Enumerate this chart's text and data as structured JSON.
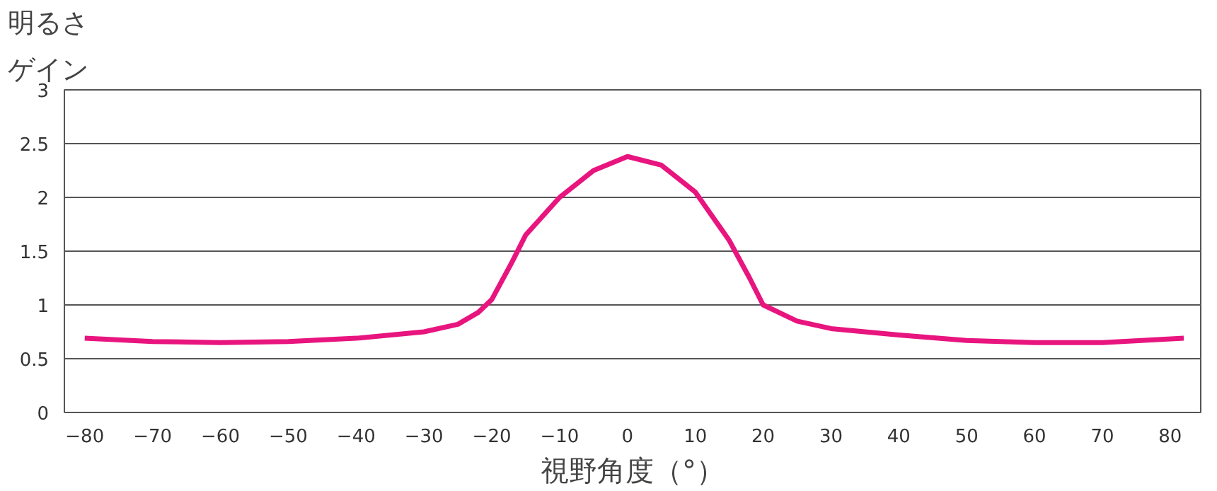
{
  "chart_data": {
    "type": "line",
    "ylabel": "明るさゲイン",
    "xlabel": "視野角度（°）",
    "x": [
      -80,
      -70,
      -60,
      -50,
      -40,
      -30,
      -25,
      -22,
      -20,
      -17,
      -15,
      -10,
      -5,
      0,
      5,
      10,
      15,
      18,
      20,
      25,
      30,
      40,
      50,
      60,
      70,
      82
    ],
    "series": [
      {
        "color": "#e8157f",
        "values": [
          0.69,
          0.66,
          0.65,
          0.66,
          0.69,
          0.75,
          0.82,
          0.93,
          1.05,
          1.4,
          1.65,
          2.0,
          2.25,
          2.38,
          2.3,
          2.05,
          1.6,
          1.25,
          1.0,
          0.85,
          0.78,
          0.72,
          0.67,
          0.65,
          0.65,
          0.69
        ]
      }
    ],
    "xlim": [
      -83,
      84.5
    ],
    "xticks": [
      -80,
      -70,
      -60,
      -50,
      -40,
      -30,
      -20,
      -10,
      0,
      10,
      20,
      30,
      40,
      50,
      60,
      70,
      80
    ],
    "ylim": [
      0,
      3
    ],
    "yticks": [
      0,
      0.5,
      1,
      1.5,
      2,
      2.5,
      3
    ],
    "grid": "y",
    "marker": "none",
    "line_style": "solid"
  }
}
